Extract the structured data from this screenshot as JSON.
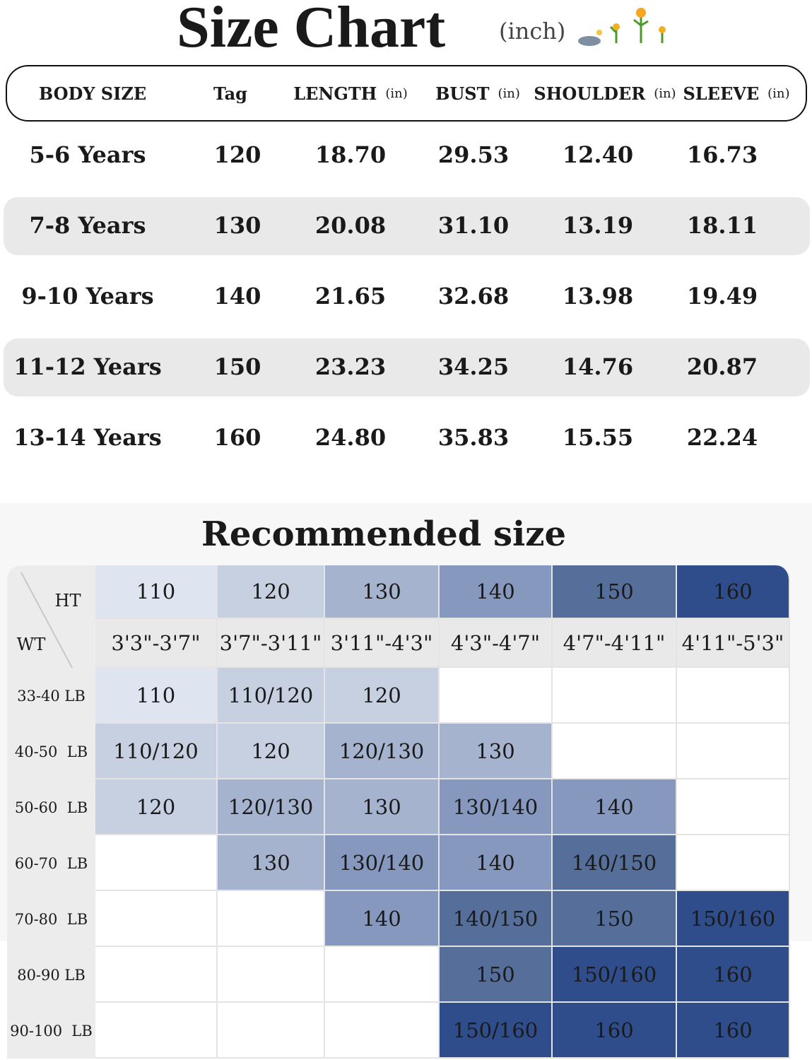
{
  "header": {
    "title": "Size Chart",
    "unit": "(inch)"
  },
  "size_table": {
    "columns": [
      {
        "name": "BODY SIZE"
      },
      {
        "name": "Tag"
      },
      {
        "name": "LENGTH",
        "unit": "(in)"
      },
      {
        "name": "BUST",
        "unit": "(in)"
      },
      {
        "name": "SHOULDER",
        "unit": "(in)"
      },
      {
        "name": "SLEEVE",
        "unit": "(in)"
      }
    ],
    "rows": [
      [
        "5-6 Years",
        "120",
        "18.70",
        "29.53",
        "12.40",
        "16.73"
      ],
      [
        "7-8 Years",
        "130",
        "20.08",
        "31.10",
        "13.19",
        "18.11"
      ],
      [
        "9-10 Years",
        "140",
        "21.65",
        "32.68",
        "13.98",
        "19.49"
      ],
      [
        "11-12 Years",
        "150",
        "23.23",
        "34.25",
        "14.76",
        "20.87"
      ],
      [
        "13-14 Years",
        "160",
        "24.80",
        "35.83",
        "15.55",
        "22.24"
      ]
    ]
  },
  "recommend": {
    "title": "Recommended size",
    "corner_ht": "HT",
    "corner_wt": "WT",
    "heights": [
      {
        "tag": "110",
        "range": "3'3\"-3'7\""
      },
      {
        "tag": "120",
        "range": "3'7\"-3'11\""
      },
      {
        "tag": "130",
        "range": "3'11\"-4'3\""
      },
      {
        "tag": "140",
        "range": "4'3\"-4'7\""
      },
      {
        "tag": "150",
        "range": "4'7\"-4'11\""
      },
      {
        "tag": "160",
        "range": "4'11\"-5'3\""
      }
    ],
    "weights": [
      "33-40 LB",
      "40-50  LB",
      "50-60  LB",
      "60-70  LB",
      "70-80  LB",
      "80-90 LB",
      "90-100  LB"
    ],
    "grid": [
      [
        "110",
        "110/120",
        "120",
        null,
        null,
        null
      ],
      [
        "110/120",
        "120",
        "120/130",
        "130",
        null,
        null
      ],
      [
        "120",
        "120/130",
        "130",
        "130/140",
        "140",
        null
      ],
      [
        null,
        "130",
        "130/140",
        "140",
        "140/150",
        null
      ],
      [
        null,
        null,
        "140",
        "140/150",
        "150",
        "150/160"
      ],
      [
        null,
        null,
        null,
        "150",
        "150/160",
        "160"
      ],
      [
        null,
        null,
        null,
        "150/160",
        "160",
        "160"
      ]
    ]
  }
}
